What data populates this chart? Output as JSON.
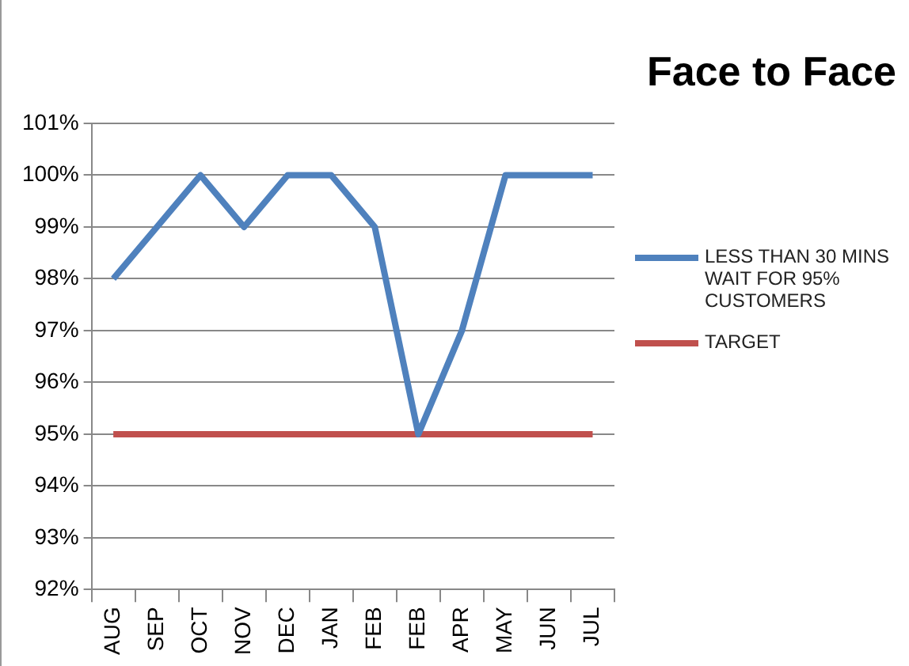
{
  "chart_data": {
    "type": "line",
    "title": "Face to Face",
    "categories": [
      "AUG",
      "SEP",
      "OCT",
      "NOV",
      "DEC",
      "JAN",
      "FEB",
      "FEB",
      "APR",
      "MAY",
      "JUN",
      "JUL"
    ],
    "series": [
      {
        "name": "LESS THAN 30 MINS WAIT FOR 95% CUSTOMERS",
        "color": "#4f81bd",
        "values": [
          98,
          99,
          100,
          99,
          100,
          100,
          99,
          95,
          97,
          100,
          100,
          100
        ]
      },
      {
        "name": "TARGET",
        "color": "#c0504d",
        "values": [
          95,
          95,
          95,
          95,
          95,
          95,
          95,
          95,
          95,
          95,
          95,
          95
        ]
      }
    ],
    "ylim": [
      92,
      101
    ],
    "yticks": [
      {
        "value": 92,
        "label": "92%"
      },
      {
        "value": 93,
        "label": "93%"
      },
      {
        "value": 94,
        "label": "94%"
      },
      {
        "value": 95,
        "label": "95%"
      },
      {
        "value": 96,
        "label": "96%"
      },
      {
        "value": 97,
        "label": "97%"
      },
      {
        "value": 98,
        "label": "98%"
      },
      {
        "value": 99,
        "label": "99%"
      },
      {
        "value": 100,
        "label": "100%"
      },
      {
        "value": 101,
        "label": "101%"
      }
    ],
    "grid": "y",
    "legend": "right",
    "marker": "none",
    "line_style": "solid"
  }
}
